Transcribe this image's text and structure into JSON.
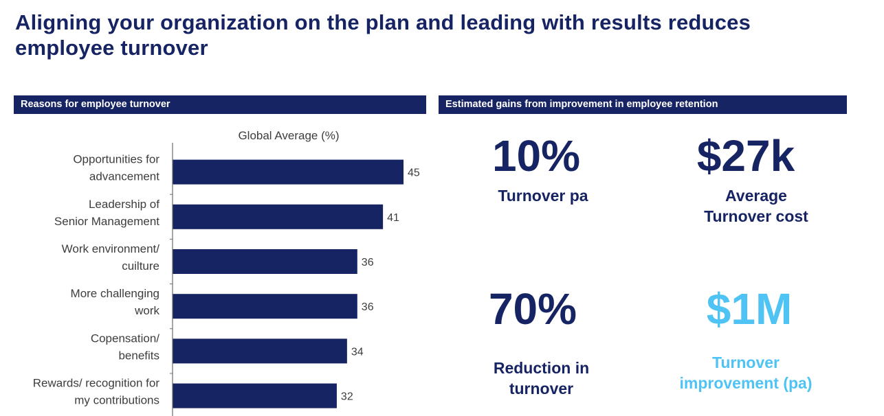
{
  "title": {
    "line1": "Aligning your organization on the plan and leading with results reduces",
    "line2": "employee turnover"
  },
  "left_header": "Reasons for employee turnover",
  "right_header": "Estimated gains from improvement in employee retention",
  "chart_data": {
    "type": "bar",
    "orientation": "horizontal",
    "title": "Global Average (%)",
    "categories": [
      [
        "Opportunities for",
        "advancement"
      ],
      [
        "Leadership of",
        "Senior Management"
      ],
      [
        "Work environment/",
        "cuilture"
      ],
      [
        "More challenging",
        "work"
      ],
      [
        "Copensation/",
        "benefits"
      ],
      [
        "Rewards/ recognition for",
        "my contributions"
      ]
    ],
    "values": [
      45,
      41,
      36,
      36,
      34,
      32
    ],
    "xlim": [
      0,
      45
    ],
    "bar_color": "#172463",
    "grid": false,
    "data_labels": true
  },
  "kpis": [
    {
      "value": "10%",
      "label": [
        "Turnover pa"
      ],
      "color": "#172463"
    },
    {
      "value": "$27k",
      "label": [
        "Average",
        "Turnover cost"
      ],
      "color": "#172463"
    },
    {
      "value": "70%",
      "label": [
        "Reduction in",
        "turnover"
      ],
      "color": "#172463"
    },
    {
      "value": "$1M",
      "label": [
        "Turnover",
        "improvement (pa)"
      ],
      "color": "#4fc3f3"
    }
  ]
}
